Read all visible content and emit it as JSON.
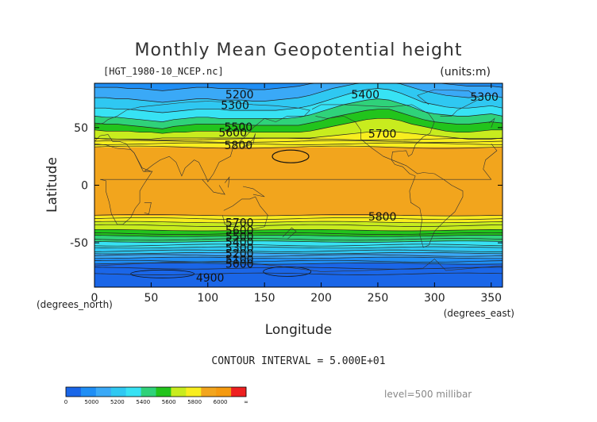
{
  "chart_data": {
    "type": "heatmap",
    "title": "Monthly Mean Geopotential height",
    "subtitle": "[HGT_1980-10_NCEP.nc]",
    "units": "(units:m)",
    "xlabel": "Longitude",
    "ylabel": "Latitude",
    "x_unit_label": "(degrees_east)",
    "y_unit_label": "(degrees_north)",
    "xlim": [
      0,
      360
    ],
    "ylim": [
      -90,
      90
    ],
    "x_ticks": [
      {
        "value": 0,
        "label": "0"
      },
      {
        "value": 50,
        "label": "50"
      },
      {
        "value": 100,
        "label": "100"
      },
      {
        "value": 150,
        "label": "150"
      },
      {
        "value": 200,
        "label": "200"
      },
      {
        "value": 250,
        "label": "250"
      },
      {
        "value": 300,
        "label": "300"
      },
      {
        "value": 350,
        "label": "350"
      }
    ],
    "y_ticks": [
      {
        "value": 50,
        "label": "50"
      },
      {
        "value": 0,
        "label": "0"
      },
      {
        "value": -50,
        "label": "-50"
      }
    ],
    "contour_interval_text": "CONTOUR INTERVAL = 5.000E+01",
    "level_text": "level=500 millibar",
    "bands": [
      {
        "min": 4800,
        "max": 5000,
        "color": "#1a66e8"
      },
      {
        "min": 5000,
        "max": 5100,
        "color": "#1f8ef5"
      },
      {
        "min": 5100,
        "max": 5200,
        "color": "#3aa9f7"
      },
      {
        "min": 5200,
        "max": 5300,
        "color": "#2fc8f2"
      },
      {
        "min": 5300,
        "max": 5400,
        "color": "#37e2f4"
      },
      {
        "min": 5400,
        "max": 5500,
        "color": "#2fd27a"
      },
      {
        "min": 5500,
        "max": 5600,
        "color": "#22c41c"
      },
      {
        "min": 5600,
        "max": 5700,
        "color": "#c8ec1e"
      },
      {
        "min": 5700,
        "max": 5800,
        "color": "#f8ee1f"
      },
      {
        "min": 5800,
        "max": 5900,
        "color": "#f2a51d"
      },
      {
        "min": 5900,
        "max": 6000,
        "color": "#f59a0f"
      },
      {
        "min": 6000,
        "max": 6200,
        "color": "#ee2020"
      }
    ],
    "colorbar_labels": [
      "0",
      "5000",
      "5200",
      "5400",
      "5600",
      "5800",
      "6000",
      "∞"
    ],
    "contour_labels": [
      {
        "lon": 128,
        "lat": 78,
        "text": "5200"
      },
      {
        "lon": 124,
        "lat": 69,
        "text": "5300"
      },
      {
        "lon": 239,
        "lat": 78,
        "text": "5400"
      },
      {
        "lon": 344,
        "lat": 76,
        "text": "5300"
      },
      {
        "lon": 127,
        "lat": 50,
        "text": "5500"
      },
      {
        "lon": 122,
        "lat": 45,
        "text": "5600"
      },
      {
        "lon": 254,
        "lat": 44,
        "text": "5700"
      },
      {
        "lon": 127,
        "lat": 34,
        "text": "5800"
      },
      {
        "lon": 254,
        "lat": -28,
        "text": "5800"
      },
      {
        "lon": 128,
        "lat": -33,
        "text": "5700"
      },
      {
        "lon": 128,
        "lat": -40,
        "text": "5600"
      },
      {
        "lon": 128,
        "lat": -45,
        "text": "5500"
      },
      {
        "lon": 128,
        "lat": -50,
        "text": "5400"
      },
      {
        "lon": 128,
        "lat": -55,
        "text": "5300"
      },
      {
        "lon": 128,
        "lat": -60,
        "text": "5200"
      },
      {
        "lon": 128,
        "lat": -65,
        "text": "5100"
      },
      {
        "lon": 128,
        "lat": -69,
        "text": "5000"
      },
      {
        "lon": 102,
        "lat": -81,
        "text": "4900"
      }
    ],
    "north_boundaries": [
      {
        "value": 5700,
        "lat": [
          41,
          40,
          40,
          40,
          40,
          40,
          41,
          41,
          41,
          41,
          41,
          41,
          41,
          41,
          41,
          41,
          41,
          41,
          41,
          41,
          42,
          43,
          44,
          45,
          46,
          47,
          47,
          46,
          45,
          44,
          43,
          42,
          41,
          40,
          40,
          40,
          41
        ]
      },
      {
        "value": 5600,
        "lat": [
          48,
          47,
          47,
          47,
          46,
          46,
          45,
          46,
          46,
          47,
          47,
          47,
          47,
          47,
          46,
          46,
          46,
          46,
          46,
          47,
          49,
          51,
          53,
          55,
          57,
          58,
          58,
          56,
          53,
          51,
          49,
          47,
          46,
          46,
          47,
          48,
          48
        ]
      },
      {
        "value": 5500,
        "lat": [
          54,
          53,
          53,
          52,
          51,
          50,
          49,
          51,
          52,
          53,
          53,
          53,
          53,
          53,
          52,
          52,
          52,
          52,
          52,
          54,
          56,
          59,
          61,
          63,
          65,
          66,
          66,
          63,
          60,
          57,
          55,
          54,
          53,
          53,
          54,
          55,
          54
        ]
      },
      {
        "value": 5400,
        "lat": [
          60,
          59,
          59,
          58,
          57,
          56,
          55,
          57,
          58,
          59,
          59,
          58,
          58,
          58,
          58,
          58,
          58,
          58,
          59,
          61,
          64,
          67,
          70,
          72,
          74,
          75,
          74,
          71,
          68,
          64,
          62,
          61,
          60,
          60,
          61,
          62,
          60
        ]
      },
      {
        "value": 5300,
        "lat": [
          67,
          67,
          66,
          66,
          65,
          64,
          63,
          64,
          65,
          66,
          66,
          66,
          65,
          65,
          65,
          65,
          65,
          66,
          67,
          69,
          72,
          75,
          78,
          81,
          83,
          84,
          83,
          80,
          76,
          72,
          70,
          68,
          67,
          67,
          68,
          69,
          67
        ]
      },
      {
        "value": 5200,
        "lat": [
          76,
          76,
          75,
          75,
          74,
          73,
          72,
          73,
          74,
          75,
          75,
          74,
          74,
          74,
          73,
          73,
          74,
          75,
          76,
          78,
          81,
          84,
          86,
          88,
          89,
          89,
          89,
          88,
          85,
          82,
          80,
          78,
          77,
          76,
          77,
          78,
          76
        ]
      },
      {
        "value": 5100,
        "lat": [
          85,
          85,
          85,
          84,
          84,
          83,
          82,
          83,
          84,
          85,
          85,
          84,
          84,
          84,
          83,
          83,
          84,
          85,
          86,
          88,
          89,
          89,
          89,
          89,
          89,
          89,
          89,
          89,
          89,
          89,
          89,
          88,
          87,
          86,
          86,
          86,
          85
        ]
      }
    ],
    "north_band_5800": {
      "value": 5800,
      "lat": 33
    },
    "south_boundaries": [
      {
        "value": 5800,
        "lat": -26
      },
      {
        "value": 5700,
        "lat": -32
      },
      {
        "value": 5600,
        "lat": -39
      },
      {
        "value": 5500,
        "lat": -44
      },
      {
        "value": 5400,
        "lat": -49
      },
      {
        "value": 5300,
        "lat": -54
      },
      {
        "value": 5200,
        "lat": -59
      },
      {
        "value": 5100,
        "lat": -63
      },
      {
        "value": 5000,
        "lat": -68
      }
    ]
  }
}
